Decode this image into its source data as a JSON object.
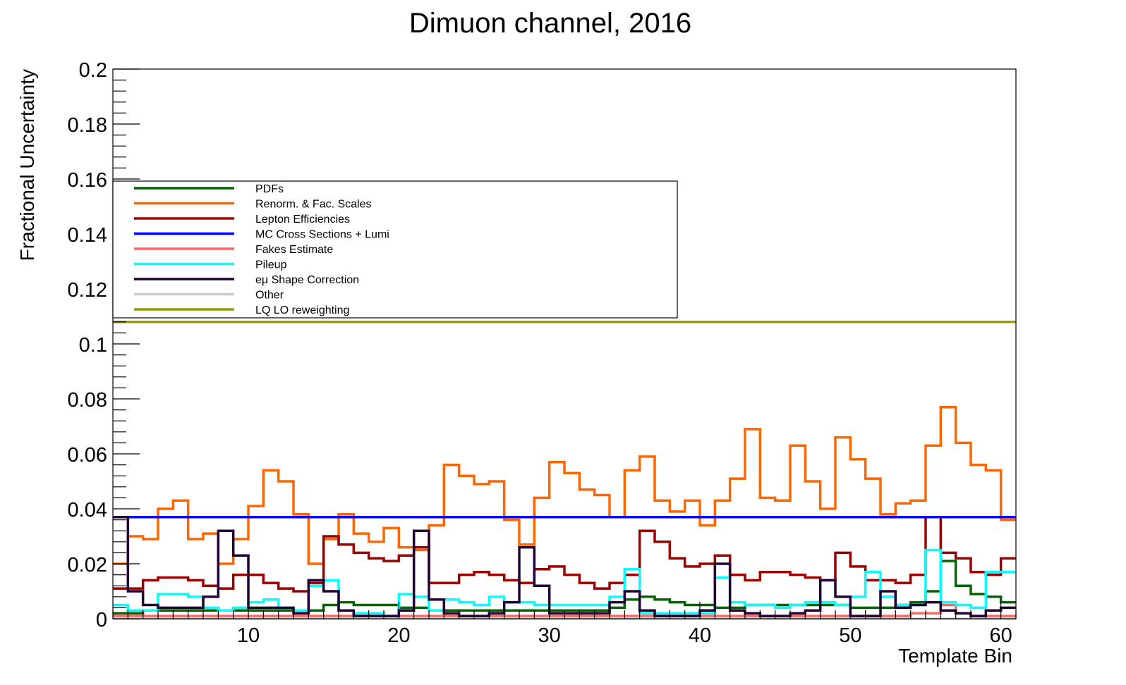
{
  "chart_data": {
    "type": "line",
    "title": "Dimuon channel, 2016",
    "xlabel": "Template Bin",
    "ylabel": "Fractional Uncertainty",
    "xlim": [
      1,
      61
    ],
    "ylim": [
      0,
      0.2
    ],
    "x_ticks": [
      10,
      20,
      30,
      40,
      50,
      60
    ],
    "x_tick_labels": [
      "10",
      "20",
      "30",
      "40",
      "50",
      "60"
    ],
    "y_ticks": [
      0,
      0.02,
      0.04,
      0.06,
      0.08,
      0.1,
      0.12,
      0.14,
      0.16,
      0.18,
      0.2
    ],
    "y_tick_labels": [
      "0",
      "0.02",
      "0.04",
      "0.06",
      "0.08",
      "0.1",
      "0.12",
      "0.14",
      "0.16",
      "0.18",
      "0.2"
    ],
    "grid": false,
    "legend_position": "upper-left",
    "histogram_style": "step",
    "series": [
      {
        "name": "PDFs",
        "color": "#006600",
        "values": [
          0.002,
          0.002,
          0.003,
          0.003,
          0.003,
          0.003,
          0.003,
          0.003,
          0.003,
          0.003,
          0.003,
          0.003,
          0.003,
          0.003,
          0.005,
          0.006,
          0.005,
          0.005,
          0.005,
          0.004,
          0.004,
          0.003,
          0.003,
          0.003,
          0.003,
          0.003,
          0.003,
          0.003,
          0.003,
          0.003,
          0.003,
          0.003,
          0.003,
          0.004,
          0.007,
          0.008,
          0.007,
          0.006,
          0.005,
          0.005,
          0.004,
          0.004,
          0.005,
          0.005,
          0.005,
          0.005,
          0.005,
          0.005,
          0.005,
          0.004,
          0.004,
          0.004,
          0.005,
          0.006,
          0.01,
          0.021,
          0.012,
          0.009,
          0.008,
          0.006
        ]
      },
      {
        "name": "Renorm. & Fac. Scales",
        "color": "#ff6600",
        "values": [
          0.02,
          0.03,
          0.029,
          0.04,
          0.043,
          0.029,
          0.031,
          0.02,
          0.029,
          0.041,
          0.054,
          0.05,
          0.038,
          0.02,
          0.029,
          0.038,
          0.031,
          0.028,
          0.033,
          0.026,
          0.025,
          0.034,
          0.056,
          0.052,
          0.049,
          0.05,
          0.036,
          0.027,
          0.044,
          0.057,
          0.053,
          0.047,
          0.045,
          0.037,
          0.054,
          0.059,
          0.043,
          0.039,
          0.043,
          0.034,
          0.043,
          0.051,
          0.069,
          0.044,
          0.043,
          0.063,
          0.05,
          0.04,
          0.066,
          0.058,
          0.051,
          0.038,
          0.042,
          0.043,
          0.063,
          0.077,
          0.064,
          0.056,
          0.054,
          0.036
        ]
      },
      {
        "name": "Lepton Efficiencies",
        "color": "#990000",
        "values": [
          0.011,
          0.011,
          0.014,
          0.015,
          0.015,
          0.014,
          0.012,
          0.011,
          0.016,
          0.016,
          0.013,
          0.011,
          0.01,
          0.013,
          0.03,
          0.027,
          0.024,
          0.022,
          0.021,
          0.023,
          0.026,
          0.013,
          0.013,
          0.016,
          0.017,
          0.016,
          0.014,
          0.013,
          0.018,
          0.019,
          0.016,
          0.013,
          0.011,
          0.013,
          0.016,
          0.032,
          0.028,
          0.022,
          0.019,
          0.02,
          0.023,
          0.016,
          0.014,
          0.017,
          0.017,
          0.016,
          0.015,
          0.014,
          0.024,
          0.019,
          0.014,
          0.014,
          0.013,
          0.016,
          0.037,
          0.024,
          0.022,
          0.017,
          0.016,
          0.022
        ]
      },
      {
        "name": "MC Cross Sections + Lumi",
        "color": "#0000ff",
        "values": [
          0.037,
          0.037,
          0.037,
          0.037,
          0.037,
          0.037,
          0.037,
          0.037,
          0.037,
          0.037,
          0.037,
          0.037,
          0.037,
          0.037,
          0.037,
          0.037,
          0.037,
          0.037,
          0.037,
          0.037,
          0.037,
          0.037,
          0.037,
          0.037,
          0.037,
          0.037,
          0.037,
          0.037,
          0.037,
          0.037,
          0.037,
          0.037,
          0.037,
          0.037,
          0.037,
          0.037,
          0.037,
          0.037,
          0.037,
          0.037,
          0.037,
          0.037,
          0.037,
          0.037,
          0.037,
          0.037,
          0.037,
          0.037,
          0.037,
          0.037,
          0.037,
          0.037,
          0.037,
          0.037,
          0.037,
          0.037,
          0.037,
          0.037,
          0.037,
          0.037
        ]
      },
      {
        "name": "Fakes Estimate",
        "color": "#ff6666",
        "values": [
          0.001,
          0.001,
          0.001,
          0.001,
          0.001,
          0.001,
          0.001,
          0.001,
          0.001,
          0.001,
          0.001,
          0.001,
          0.001,
          0.001,
          0.001,
          0.001,
          0.001,
          0.001,
          0.001,
          0.001,
          0.001,
          0.001,
          0.001,
          0.001,
          0.001,
          0.001,
          0.001,
          0.001,
          0.001,
          0.001,
          0.001,
          0.001,
          0.001,
          0.001,
          0.001,
          0.001,
          0.001,
          0.001,
          0.001,
          0.001,
          0.001,
          0.001,
          0.001,
          0.001,
          0.001,
          0.001,
          0.001,
          0.001,
          0.001,
          0.001,
          0.001,
          0.001,
          0.001,
          0.002,
          0.002,
          0.005,
          0.002,
          0.001,
          0.001,
          0.001
        ]
      },
      {
        "name": "Pileup",
        "color": "#00ffff",
        "values": [
          0.005,
          0.003,
          0.003,
          0.009,
          0.009,
          0.008,
          0.004,
          0.003,
          0.004,
          0.006,
          0.007,
          0.004,
          0.003,
          0.012,
          0.014,
          0.003,
          0.002,
          0.002,
          0.001,
          0.009,
          0.008,
          0.003,
          0.007,
          0.006,
          0.005,
          0.008,
          0.006,
          0.006,
          0.005,
          0.005,
          0.005,
          0.005,
          0.005,
          0.008,
          0.018,
          0.002,
          0.002,
          0.002,
          0.002,
          0.002,
          0.015,
          0.006,
          0.005,
          0.005,
          0.004,
          0.005,
          0.006,
          0.006,
          0.005,
          0.008,
          0.017,
          0.008,
          0.005,
          0.005,
          0.025,
          0.006,
          0.005,
          0.004,
          0.017,
          0.017
        ]
      },
      {
        "name": "eμ Shape Correction",
        "color": "#220033",
        "values": [
          0.037,
          0.01,
          0.005,
          0.004,
          0.004,
          0.004,
          0.008,
          0.032,
          0.023,
          0.004,
          0.004,
          0.004,
          0.002,
          0.014,
          0.01,
          0.003,
          0.001,
          0.001,
          0.001,
          0.003,
          0.032,
          0.007,
          0.002,
          0.001,
          0.001,
          0.002,
          0.006,
          0.026,
          0.012,
          0.002,
          0.002,
          0.002,
          0.002,
          0.006,
          0.01,
          0.003,
          0.001,
          0.001,
          0.001,
          0.003,
          0.02,
          0.003,
          0.002,
          0.001,
          0.001,
          0.002,
          0.003,
          0.014,
          0.008,
          0.001,
          0.001,
          0.01,
          0.004,
          0.005,
          0.006,
          0.003,
          0.002,
          0.001,
          0.003,
          0.004
        ]
      },
      {
        "name": "Other",
        "color": "#cccccc",
        "values": [
          0.0,
          0.0,
          0.0,
          0.0,
          0.0,
          0.0,
          0.0,
          0.0,
          0.0,
          0.0,
          0.0,
          0.0,
          0.0,
          0.0,
          0.0,
          0.0,
          0.0,
          0.0,
          0.0,
          0.0,
          0.0,
          0.0,
          0.0,
          0.0,
          0.0,
          0.0,
          0.0,
          0.0,
          0.0,
          0.0,
          0.0,
          0.0,
          0.0,
          0.0,
          0.0,
          0.0,
          0.0,
          0.0,
          0.0,
          0.0,
          0.0,
          0.0,
          0.0,
          0.0,
          0.0,
          0.0,
          0.0,
          0.0,
          0.0,
          0.0,
          0.0,
          0.0,
          0.0,
          0.0,
          0.0,
          0.0,
          0.0,
          0.0,
          0.0,
          0.0
        ]
      },
      {
        "name": "LQ LO reweighting",
        "color": "#999900",
        "values": [
          0.108,
          0.108,
          0.108,
          0.108,
          0.108,
          0.108,
          0.108,
          0.108,
          0.108,
          0.108,
          0.108,
          0.108,
          0.108,
          0.108,
          0.108,
          0.108,
          0.108,
          0.108,
          0.108,
          0.108,
          0.108,
          0.108,
          0.108,
          0.108,
          0.108,
          0.108,
          0.108,
          0.108,
          0.108,
          0.108,
          0.108,
          0.108,
          0.108,
          0.108,
          0.108,
          0.108,
          0.108,
          0.108,
          0.108,
          0.108,
          0.108,
          0.108,
          0.108,
          0.108,
          0.108,
          0.108,
          0.108,
          0.108,
          0.108,
          0.108,
          0.108,
          0.108,
          0.108,
          0.108,
          0.108,
          0.108,
          0.108,
          0.108,
          0.108,
          0.108
        ]
      }
    ]
  }
}
